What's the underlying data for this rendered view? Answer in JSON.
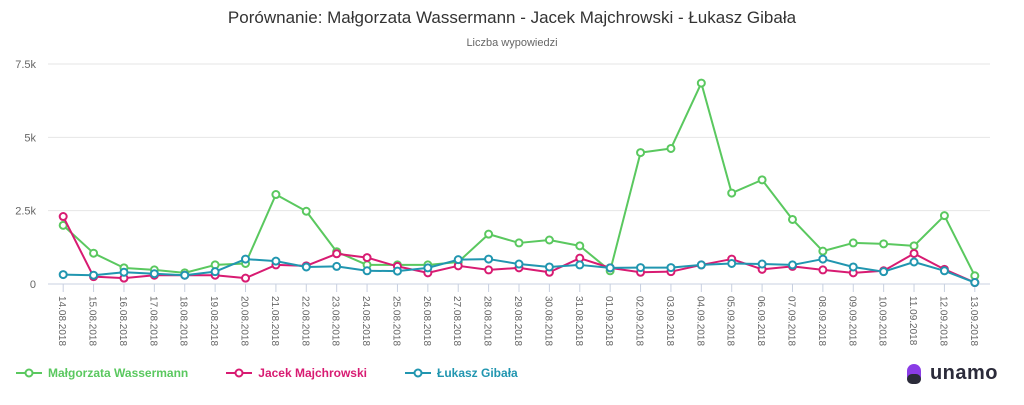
{
  "chart_data": {
    "type": "line",
    "title": "Porównanie: Małgorzata Wassermann - Jacek Majchrowski - Łukasz Gibała",
    "subtitle": "Liczba wypowiedzi",
    "ylim": [
      0,
      7500
    ],
    "y_ticks": [
      0,
      2500,
      5000,
      7500
    ],
    "y_tick_labels": [
      "0",
      "2.5k",
      "5k",
      "7.5k"
    ],
    "grid": true,
    "legend_position": "bottom-left",
    "categories": [
      "14.08.2018",
      "15.08.2018",
      "16.08.2018",
      "17.08.2018",
      "18.08.2018",
      "19.08.2018",
      "20.08.2018",
      "21.08.2018",
      "22.08.2018",
      "23.08.2018",
      "24.08.2018",
      "25.08.2018",
      "26.08.2018",
      "27.08.2018",
      "28.08.2018",
      "29.08.2018",
      "30.08.2018",
      "31.08.2018",
      "01.09.2018",
      "02.09.2018",
      "03.09.2018",
      "04.09.2018",
      "05.09.2018",
      "06.09.2018",
      "07.09.2018",
      "08.09.2018",
      "09.09.2018",
      "10.09.2018",
      "11.09.2018",
      "12.09.2018",
      "13.09.2018"
    ],
    "series": [
      {
        "name": "Małgorzata Wassermann",
        "color": "#5ac85f",
        "values": [
          2000,
          1050,
          550,
          480,
          380,
          650,
          700,
          3050,
          2480,
          1100,
          650,
          650,
          650,
          750,
          1700,
          1400,
          1500,
          1300,
          450,
          4480,
          4620,
          6850,
          3100,
          3550,
          2200,
          1120,
          1400,
          1370,
          1300,
          2330,
          280
        ]
      },
      {
        "name": "Jacek Majchrowski",
        "color": "#d81b72",
        "values": [
          2300,
          250,
          200,
          300,
          300,
          300,
          200,
          650,
          620,
          1030,
          900,
          600,
          380,
          620,
          480,
          550,
          400,
          880,
          550,
          400,
          420,
          650,
          850,
          500,
          600,
          480,
          380,
          450,
          1040,
          500,
          50
        ]
      },
      {
        "name": "Łukasz Gibała",
        "color": "#2196b0",
        "values": [
          320,
          300,
          400,
          350,
          300,
          420,
          850,
          780,
          580,
          600,
          450,
          440,
          550,
          830,
          850,
          680,
          580,
          650,
          550,
          560,
          560,
          650,
          700,
          680,
          650,
          850,
          580,
          420,
          750,
          450,
          50
        ]
      }
    ]
  },
  "brand": {
    "name": "unamo",
    "color": "#8a3ce6"
  }
}
